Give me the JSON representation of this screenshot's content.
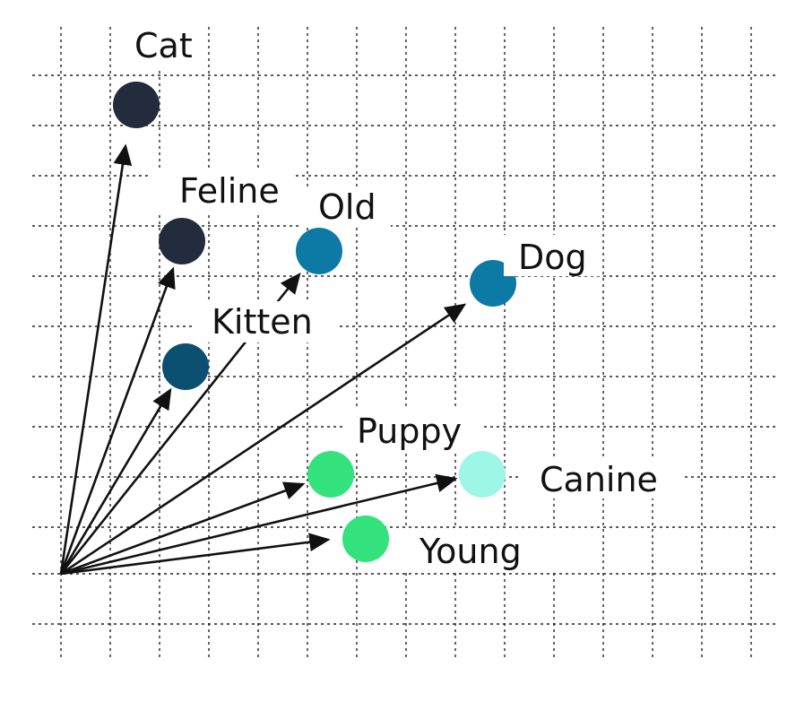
{
  "colors": {
    "background": "#ffffff",
    "grid": "#222222",
    "arrow": "#111111"
  },
  "words": [
    {
      "id": "cat",
      "label": "Cat",
      "color": "#232c3d"
    },
    {
      "id": "feline",
      "label": "Feline",
      "color": "#232c3d"
    },
    {
      "id": "kitten",
      "label": "Kitten",
      "color": "#0b4f71"
    },
    {
      "id": "old",
      "label": "Old",
      "color": "#0c7aa5"
    },
    {
      "id": "dog",
      "label": "Dog",
      "color": "#0c7aa5"
    },
    {
      "id": "puppy",
      "label": "Puppy",
      "color": "#33e27c"
    },
    {
      "id": "canine",
      "label": "Canine",
      "color": "#9ef7e6"
    },
    {
      "id": "young",
      "label": "Young",
      "color": "#33e27c"
    }
  ]
}
